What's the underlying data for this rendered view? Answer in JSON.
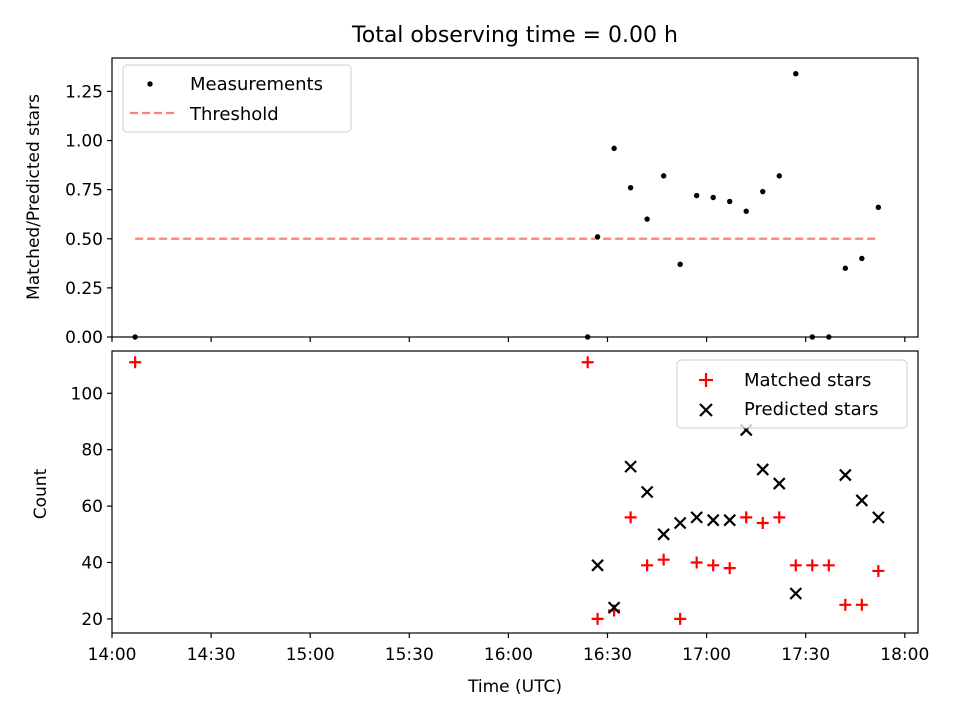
{
  "chart_data": [
    {
      "type": "scatter",
      "title": "Total observing time = 0.00 h",
      "xlabel": "",
      "ylabel": "Matched/Predicted stars",
      "ylim": [
        0,
        1.42
      ],
      "yticks": [
        "0.00",
        "0.25",
        "0.50",
        "0.75",
        "1.00",
        "1.25"
      ],
      "grid": false,
      "legend": "top-left",
      "series": [
        {
          "name": "Measurements",
          "marker": "dot",
          "color": "#000000",
          "x": [
            "14:07",
            "16:24",
            "16:27",
            "16:32",
            "16:37",
            "16:42",
            "16:47",
            "16:52",
            "16:57",
            "17:02",
            "17:07",
            "17:12",
            "17:17",
            "17:22",
            "17:27",
            "17:32",
            "17:37",
            "17:42",
            "17:47",
            "17:52"
          ],
          "y": [
            0.0,
            0.0,
            0.51,
            0.96,
            0.76,
            0.6,
            0.82,
            0.37,
            0.72,
            0.71,
            0.69,
            0.64,
            0.74,
            0.82,
            1.34,
            0.0,
            0.0,
            0.35,
            0.4,
            0.66
          ]
        },
        {
          "name": "Threshold",
          "marker": "dashed-line",
          "color": "#ff7f7f",
          "x": [
            "14:07",
            "17:52"
          ],
          "y": [
            0.5,
            0.5
          ]
        }
      ]
    },
    {
      "type": "scatter",
      "title": "",
      "xlabel": "Time (UTC)",
      "ylabel": "Count",
      "ylim": [
        15,
        115
      ],
      "yticks": [
        "20",
        "40",
        "60",
        "80",
        "100"
      ],
      "xlim": [
        "14:00",
        "18:04"
      ],
      "xticks": [
        "14:00",
        "14:30",
        "15:00",
        "15:30",
        "16:00",
        "16:30",
        "17:00",
        "17:30",
        "18:00"
      ],
      "grid": false,
      "legend": "top-right",
      "series": [
        {
          "name": "Matched stars",
          "marker": "plus",
          "color": "#ff0000",
          "x": [
            "14:07",
            "16:24",
            "16:27",
            "16:32",
            "16:37",
            "16:42",
            "16:47",
            "16:52",
            "16:57",
            "17:02",
            "17:07",
            "17:12",
            "17:17",
            "17:22",
            "17:27",
            "17:32",
            "17:37",
            "17:42",
            "17:47",
            "17:52"
          ],
          "y": [
            111,
            111,
            20,
            23,
            56,
            39,
            41,
            20,
            40,
            39,
            38,
            56,
            54,
            56,
            39,
            39,
            39,
            25,
            25,
            37
          ]
        },
        {
          "name": "Predicted stars",
          "marker": "x",
          "color": "#000000",
          "x": [
            "16:27",
            "16:32",
            "16:37",
            "16:42",
            "16:47",
            "16:52",
            "16:57",
            "17:02",
            "17:07",
            "17:12",
            "17:17",
            "17:22",
            "17:27",
            "17:42",
            "17:47",
            "17:52"
          ],
          "y": [
            39,
            24,
            74,
            65,
            50,
            54,
            56,
            55,
            55,
            87,
            73,
            68,
            29,
            71,
            62,
            56
          ]
        }
      ]
    }
  ]
}
